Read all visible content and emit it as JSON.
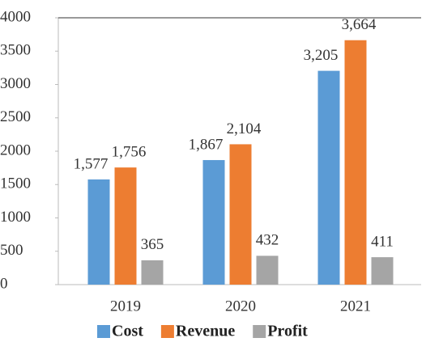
{
  "chart_data": {
    "type": "bar",
    "categories": [
      "2019",
      "2020",
      "2021"
    ],
    "series": [
      {
        "name": "Cost",
        "color": "#5b9bd5",
        "values": [
          1577,
          1867,
          3205
        ],
        "value_labels": [
          "1,577",
          "1,867",
          "3,205"
        ]
      },
      {
        "name": "Revenue",
        "color": "#ed7d31",
        "values": [
          1756,
          2104,
          3664
        ],
        "value_labels": [
          "1,756",
          "2,104",
          "3,664"
        ]
      },
      {
        "name": "Profit",
        "color": "#a5a5a5",
        "values": [
          365,
          432,
          411
        ],
        "value_labels": [
          "365",
          "432",
          "411"
        ]
      }
    ],
    "ylim": [
      0,
      4000
    ],
    "yticks": [
      0,
      500,
      1000,
      1500,
      2000,
      2500,
      3000,
      3500,
      4000
    ],
    "grid": false,
    "legend": "bottom"
  }
}
